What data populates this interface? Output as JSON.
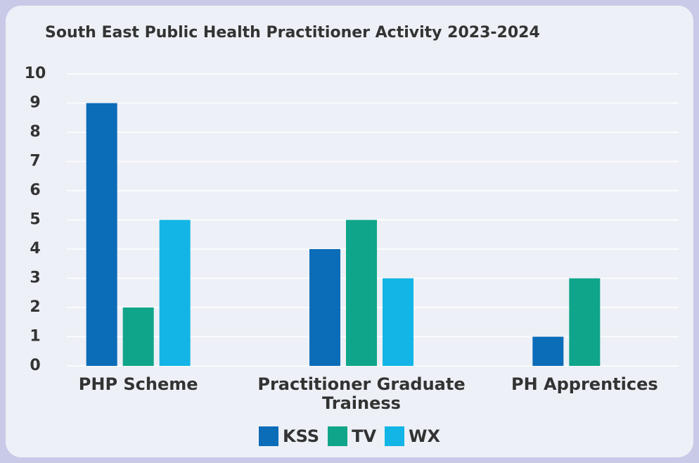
{
  "chart_data": {
    "type": "bar",
    "title": "South East Public Health Practitioner Activity 2023-2024",
    "categories": [
      "PHP Scheme",
      "Practitioner Graduate Trainess",
      "PH Apprentices"
    ],
    "series": [
      {
        "name": "KSS",
        "color": "#0b6cb8",
        "values": [
          9,
          4,
          1
        ]
      },
      {
        "name": "TV",
        "color": "#0fa58a",
        "values": [
          2,
          5,
          3
        ]
      },
      {
        "name": "WX",
        "color": "#12b5e5",
        "values": [
          5,
          3,
          null
        ]
      }
    ],
    "ylim": [
      0,
      10
    ],
    "yticks": [
      0,
      1,
      2,
      3,
      4,
      5,
      6,
      7,
      8,
      9,
      10
    ],
    "grid": true,
    "legend": "bottom"
  }
}
